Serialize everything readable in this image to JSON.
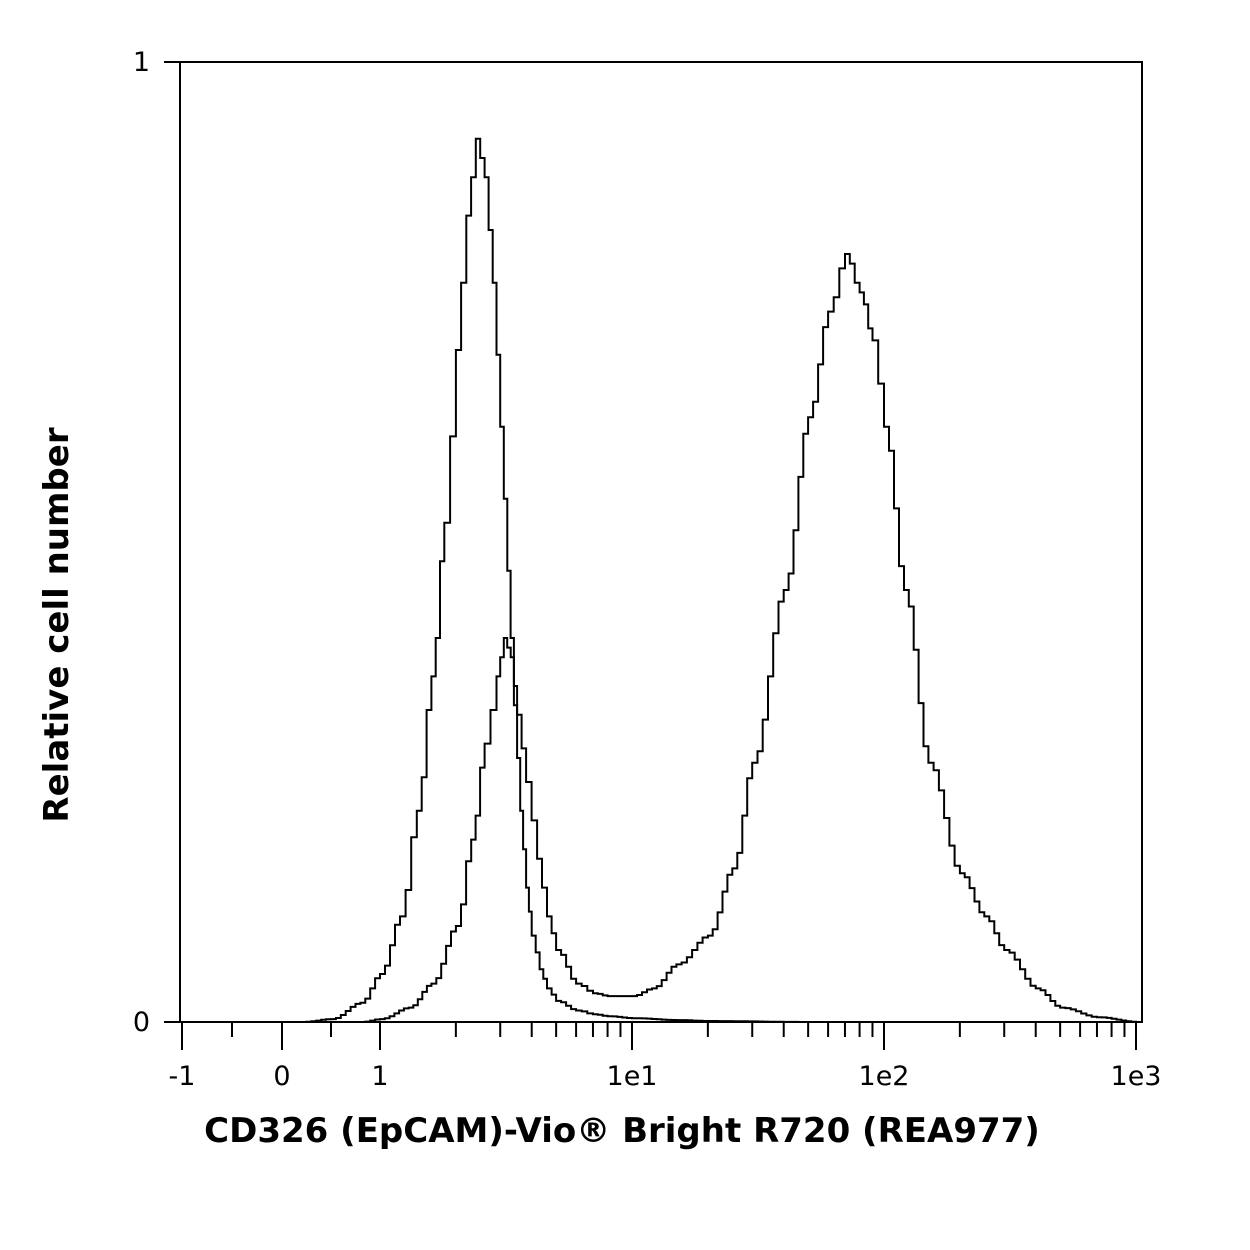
{
  "chart_data": {
    "type": "line",
    "title": "",
    "xlabel": "CD326 (EpCAM)-Vio® Bright R720 (REA977)",
    "ylabel": "Relative cell number",
    "xscale": "biexponential",
    "xlim": [
      -1,
      1000
    ],
    "ylim": [
      0,
      1
    ],
    "grid": false,
    "legend": "none",
    "line_color": "#000000",
    "x_ticks": [
      {
        "value": -1,
        "label": "-1"
      },
      {
        "value": 0,
        "label": "0"
      },
      {
        "value": 1,
        "label": "1"
      },
      {
        "value": 10,
        "label": "1e1"
      },
      {
        "value": 100,
        "label": "1e2"
      },
      {
        "value": 1000,
        "label": "1e3"
      }
    ],
    "y_ticks": [
      {
        "value": 0,
        "label": "0"
      },
      {
        "value": 1,
        "label": "1"
      }
    ],
    "series": [
      {
        "x": [
          0.2,
          0.5,
          0.8,
          1.0,
          1.2,
          1.4,
          1.6,
          1.8,
          2.0,
          2.2,
          2.4,
          2.6,
          2.8,
          3.0,
          3.2,
          3.4,
          3.6,
          3.8,
          4.0,
          4.3,
          4.6,
          5.0,
          6.0,
          7.0,
          8.0,
          10.0,
          15.0,
          20.0,
          50.0,
          100.0,
          200.0,
          500.0,
          1000.0
        ],
        "values": [
          0.0,
          0.003,
          0.02,
          0.05,
          0.11,
          0.22,
          0.36,
          0.52,
          0.7,
          0.84,
          0.92,
          0.88,
          0.77,
          0.62,
          0.47,
          0.33,
          0.22,
          0.14,
          0.09,
          0.055,
          0.035,
          0.022,
          0.012,
          0.008,
          0.006,
          0.004,
          0.002,
          0.001,
          0.0,
          0.0,
          0.0,
          0.0,
          0.0
        ]
      },
      {
        "x": [
          0.8,
          1.0,
          1.3,
          1.6,
          2.0,
          2.3,
          2.6,
          2.9,
          3.1,
          3.3,
          3.5,
          3.8,
          4.2,
          4.6,
          5.0,
          6.0,
          7.0,
          8.0,
          10.0,
          12.0,
          15.0,
          20.0,
          25.0,
          30.0,
          40.0,
          50.0,
          60.0,
          70.0,
          80.0,
          90.0,
          100.0,
          120.0,
          150.0,
          200.0,
          250.0,
          300.0,
          400.0,
          500.0,
          700.0,
          1000.0
        ],
        "values": [
          0.0,
          0.003,
          0.015,
          0.04,
          0.1,
          0.19,
          0.29,
          0.36,
          0.4,
          0.38,
          0.32,
          0.25,
          0.17,
          0.11,
          0.075,
          0.04,
          0.03,
          0.027,
          0.027,
          0.035,
          0.06,
          0.09,
          0.16,
          0.27,
          0.45,
          0.63,
          0.74,
          0.8,
          0.76,
          0.71,
          0.62,
          0.45,
          0.27,
          0.155,
          0.11,
          0.075,
          0.035,
          0.015,
          0.005,
          0.0
        ]
      }
    ]
  }
}
